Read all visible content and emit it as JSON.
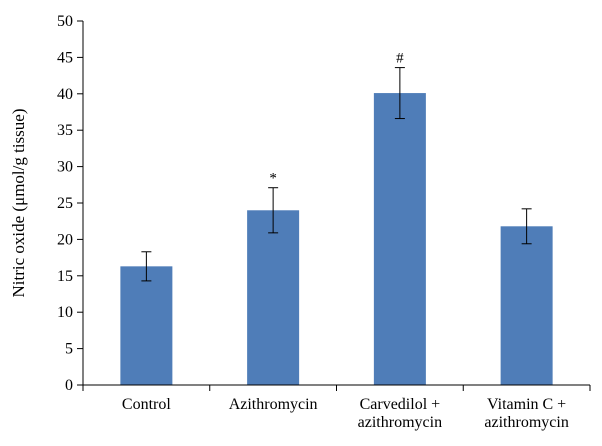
{
  "chart_data": {
    "type": "bar",
    "ylabel": "Nitric oxide (μmol/g tissue)",
    "xlabel": "",
    "ylim": [
      0,
      50
    ],
    "yticks": [
      0,
      5,
      10,
      15,
      20,
      25,
      30,
      35,
      40,
      45,
      50
    ],
    "grid": false,
    "categories": [
      [
        "Control"
      ],
      [
        "Azithromycin"
      ],
      [
        "Carvedilol +",
        "azithromycin"
      ],
      [
        "Vitamin C +",
        "azithromycin"
      ]
    ],
    "values": [
      16.3,
      24.0,
      40.1,
      21.8
    ],
    "errors": [
      2.0,
      3.1,
      3.5,
      2.4
    ],
    "annotations": [
      "",
      "*",
      "#",
      ""
    ],
    "bar_color": "#4f7db8",
    "error_color": "#000000"
  }
}
